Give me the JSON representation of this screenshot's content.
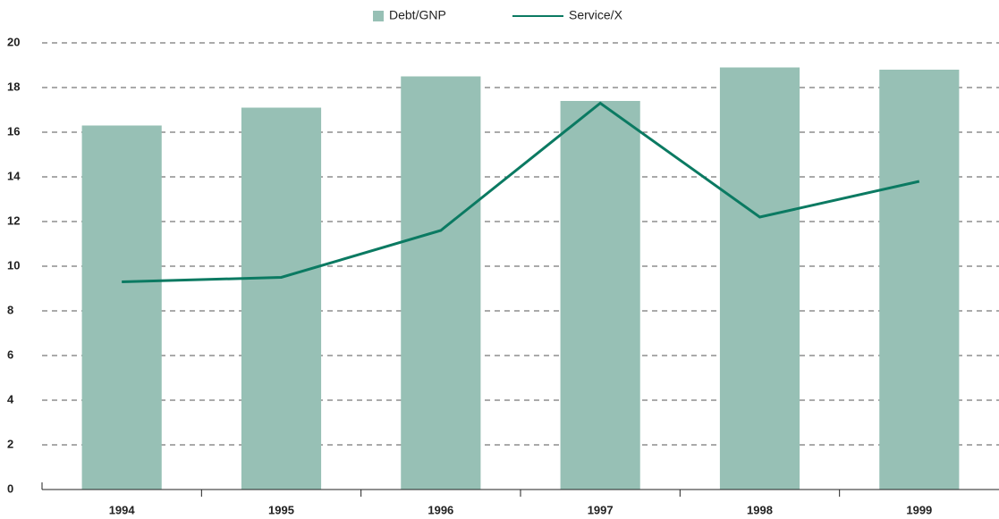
{
  "chart_data": {
    "type": "bar",
    "categories": [
      "1994",
      "1995",
      "1996",
      "1997",
      "1998",
      "1999"
    ],
    "series": [
      {
        "name": "Debt/GNP",
        "type": "bar",
        "color": "#97c0b5",
        "values": [
          16.3,
          17.1,
          18.5,
          17.4,
          18.9,
          18.8
        ]
      },
      {
        "name": "Service/X",
        "type": "line",
        "color": "#0b7a62",
        "values": [
          9.3,
          9.5,
          11.6,
          17.3,
          12.2,
          13.8
        ]
      }
    ],
    "ylim": [
      0,
      20
    ],
    "yticks": [
      0,
      2,
      4,
      6,
      8,
      10,
      12,
      14,
      16,
      18,
      20
    ],
    "grid": true,
    "legend": "top"
  }
}
